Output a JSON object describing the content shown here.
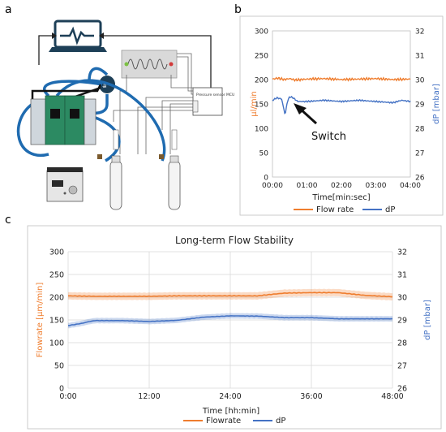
{
  "panels": {
    "a": {
      "letter": "a",
      "sensor_label": "Pressure sensor MCU"
    },
    "b": {
      "letter": "b",
      "annotation": "Switch"
    },
    "c": {
      "letter": "c"
    }
  },
  "chart_data": [
    {
      "type": "line",
      "panel": "b",
      "title": "",
      "xlabel": "Time[min:sec]",
      "ylabel": "µl/min",
      "y2label": "dP [mbar]",
      "xlim": [
        0,
        240
      ],
      "ylim": [
        0,
        300
      ],
      "y2lim": [
        26,
        32
      ],
      "xticks": [
        0,
        60,
        120,
        180,
        240
      ],
      "xtick_labels": [
        "00:00",
        "01:00",
        "02:00",
        "03:00",
        "04:00"
      ],
      "yticks": [
        0,
        50,
        100,
        150,
        200,
        250,
        300
      ],
      "y2ticks": [
        26,
        27,
        28,
        29,
        30,
        31,
        32
      ],
      "grid": false,
      "legend": "below",
      "series": [
        {
          "name": "Flow rate",
          "axis": "left",
          "color": "#ef7d2e",
          "x": [
            0,
            10,
            20,
            30,
            40,
            60,
            90,
            120,
            150,
            180,
            210,
            240
          ],
          "y": [
            201,
            203,
            200,
            202,
            199,
            201,
            202,
            200,
            201,
            202,
            200,
            201
          ]
        },
        {
          "name": "dP",
          "axis": "right",
          "color": "#4472c4",
          "x": [
            0,
            8,
            16,
            22,
            26,
            30,
            36,
            44,
            60,
            90,
            120,
            150,
            180,
            210,
            225,
            240
          ],
          "y": [
            29.15,
            29.25,
            29.2,
            28.55,
            29.1,
            29.3,
            29.25,
            29.1,
            29.1,
            29.15,
            29.1,
            29.15,
            29.1,
            29.05,
            29.15,
            29.1
          ]
        }
      ]
    },
    {
      "type": "line",
      "panel": "c",
      "title": "Long-term Flow Stability",
      "xlabel": "Time [hh:min]",
      "ylabel": "Flowrate [µm/min]",
      "y2label": "dP [mbar]",
      "xlim": [
        0,
        48
      ],
      "ylim": [
        0,
        300
      ],
      "y2lim": [
        26,
        32
      ],
      "xticks": [
        0,
        12,
        24,
        36,
        48
      ],
      "xtick_labels": [
        "0:00",
        "12:00",
        "24:00",
        "36:00",
        "48:00"
      ],
      "yticks": [
        0,
        50,
        100,
        150,
        200,
        250,
        300
      ],
      "y2ticks": [
        26,
        27,
        28,
        29,
        30,
        31,
        32
      ],
      "grid": true,
      "legend": "below",
      "series": [
        {
          "name": "Flowrate",
          "axis": "left",
          "color": "#ef7d2e",
          "band": 8,
          "x": [
            0,
            4,
            8,
            12,
            16,
            20,
            24,
            28,
            30,
            32,
            36,
            40,
            44,
            48
          ],
          "y": [
            203,
            202,
            202,
            202,
            203,
            203,
            203,
            203,
            206,
            209,
            210,
            210,
            204,
            201
          ]
        },
        {
          "name": "dP",
          "axis": "right",
          "color": "#4472c4",
          "band": 0.12,
          "x": [
            0,
            1,
            2,
            3,
            4,
            8,
            12,
            16,
            20,
            24,
            28,
            32,
            36,
            40,
            44,
            48
          ],
          "y": [
            28.75,
            28.8,
            28.85,
            28.92,
            28.97,
            28.97,
            28.93,
            28.98,
            29.12,
            29.18,
            29.17,
            29.1,
            29.1,
            29.05,
            29.05,
            29.05
          ]
        }
      ]
    }
  ]
}
